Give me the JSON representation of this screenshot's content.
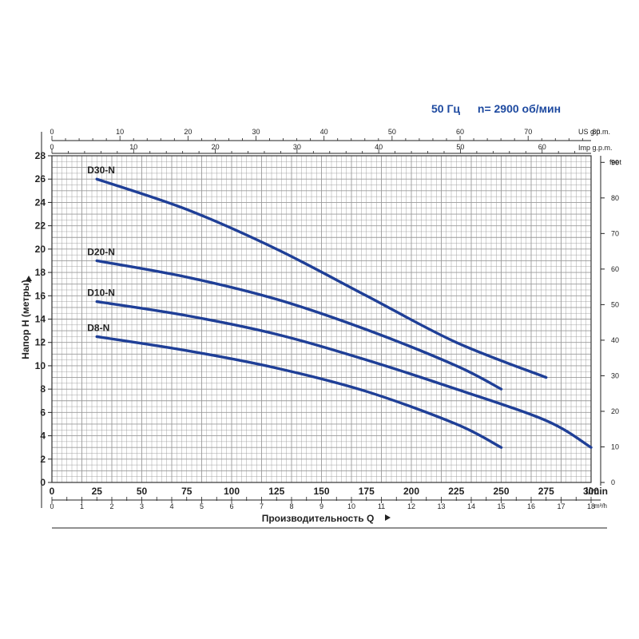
{
  "header": {
    "frequency": "50 Гц",
    "speed": "n= 2900 об/мин"
  },
  "chart_data": {
    "type": "line",
    "xlabel": "Производительность Q",
    "ylabel": "Напор H (метры)",
    "x_unit": "l/min",
    "xlim": [
      0,
      300
    ],
    "ylim": [
      0,
      28
    ],
    "grid": true,
    "colors": {
      "curve": "#1f3f97",
      "grid": "#9a9a9a",
      "axis": "#222222",
      "accent": "#1e4aa0"
    },
    "series": [
      {
        "name": "D30-N",
        "x": [
          25,
          75,
          125,
          175,
          225,
          275
        ],
        "y": [
          26.0,
          23.4,
          20.0,
          16.0,
          12.0,
          9.0
        ]
      },
      {
        "name": "D20-N",
        "x": [
          25,
          75,
          125,
          175,
          225,
          250
        ],
        "y": [
          19.0,
          17.6,
          15.7,
          13.1,
          10.0,
          8.0
        ]
      },
      {
        "name": "D10-N",
        "x": [
          25,
          75,
          125,
          175,
          225,
          275,
          300
        ],
        "y": [
          15.5,
          14.3,
          12.7,
          10.5,
          8.0,
          5.3,
          3.0
        ]
      },
      {
        "name": "D8-N",
        "x": [
          25,
          75,
          125,
          175,
          225,
          250
        ],
        "y": [
          12.5,
          11.3,
          9.8,
          7.8,
          5.0,
          3.0
        ]
      }
    ],
    "y_ticks": [
      0,
      2,
      4,
      6,
      8,
      10,
      12,
      14,
      16,
      18,
      20,
      22,
      24,
      26,
      28
    ],
    "x_ticks_lmin": [
      0,
      25,
      50,
      75,
      100,
      125,
      150,
      175,
      200,
      225,
      250,
      275,
      300
    ],
    "x_ticks_m3h": [
      0,
      1,
      2,
      3,
      4,
      5,
      6,
      7,
      8,
      9,
      10,
      11,
      12,
      13,
      14,
      15,
      16,
      17,
      18
    ],
    "x_unit_m3h": "m³/h",
    "top_ticks_us": [
      0,
      10,
      20,
      30,
      40,
      50,
      60,
      70,
      80
    ],
    "top_unit_us": "US g.p.m.",
    "top_ticks_imp": [
      0,
      10,
      20,
      30,
      40,
      50,
      60
    ],
    "top_unit_imp": "Imp g.p.m.",
    "right_ticks_feet": [
      0,
      10,
      20,
      30,
      40,
      50,
      60,
      70,
      80,
      90
    ],
    "right_unit": "feet"
  }
}
